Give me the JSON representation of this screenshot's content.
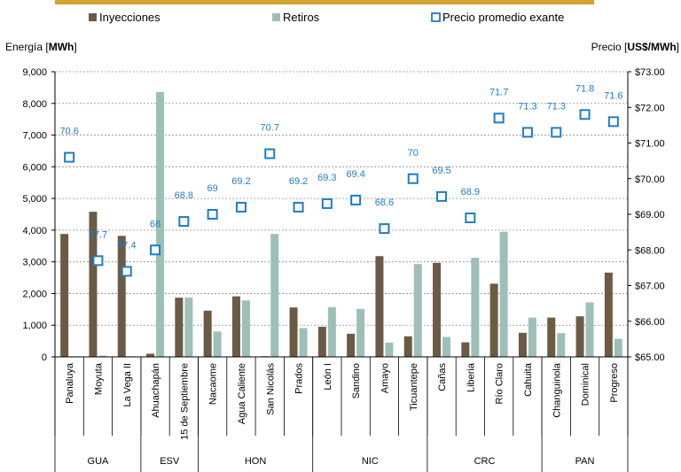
{
  "chart_data": {
    "type": "bar",
    "categories": [
      "Panaluya",
      "Moyuta",
      "La Vega II",
      "Ahuachapán",
      "15 de Septiembre",
      "Nacaome",
      "Agua Caliente",
      "San Nicolás",
      "Prados",
      "León I",
      "Sandino",
      "Amayo",
      "Ticuantepe",
      "Cañas",
      "Liberia",
      "Río Claro",
      "Cahuita",
      "Changuinola",
      "Dominical",
      "Progreso"
    ],
    "groups": [
      {
        "name": "GUA",
        "count": 3
      },
      {
        "name": "ESV",
        "count": 2
      },
      {
        "name": "HON",
        "count": 4
      },
      {
        "name": "NIC",
        "count": 4
      },
      {
        "name": "CRC",
        "count": 4
      },
      {
        "name": "PAN",
        "count": 3
      }
    ],
    "series": [
      {
        "name": "Inyecciones",
        "type": "bar",
        "axis": "left",
        "color": "#6B5B45",
        "values": [
          3880,
          4580,
          3820,
          100,
          1870,
          1460,
          1910,
          20,
          1560,
          950,
          730,
          3180,
          650,
          2970,
          460,
          2310,
          760,
          1240,
          1280,
          2660
        ]
      },
      {
        "name": "Retiros",
        "type": "bar",
        "axis": "left",
        "color": "#9DBFB8",
        "values": [
          20,
          40,
          20,
          8360,
          1870,
          800,
          1780,
          3880,
          910,
          1570,
          1510,
          450,
          2930,
          630,
          3130,
          3950,
          1240,
          750,
          1720,
          570
        ]
      },
      {
        "name": "Precio promedio exante",
        "type": "marker",
        "axis": "right",
        "color": "#1F7CC6",
        "values": [
          70.6,
          67.7,
          67.4,
          68.0,
          68.8,
          69.0,
          69.2,
          70.7,
          69.2,
          69.3,
          69.4,
          68.6,
          70.0,
          69.5,
          68.9,
          71.7,
          71.3,
          71.3,
          71.8,
          71.6
        ]
      }
    ],
    "y_left": {
      "label_prefix": "Energía [",
      "label_bold": "MWh",
      "label_suffix": "]",
      "min": 0,
      "max": 9000,
      "step": 1000,
      "ticks": [
        "0",
        "1,000",
        "2,000",
        "3,000",
        "4,000",
        "5,000",
        "6,000",
        "7,000",
        "8,000",
        "9,000"
      ]
    },
    "y_right": {
      "label_prefix": "Precio [",
      "label_bold": "US$/MWh",
      "label_suffix": "]",
      "min": 65,
      "max": 73,
      "step": 1,
      "ticks": [
        "$65.00",
        "$66.00",
        "$67.00",
        "$68.00",
        "$69.00",
        "$70.00",
        "$71.00",
        "$72.00",
        "$73.00"
      ]
    },
    "grid": true,
    "legend_position": "top"
  },
  "colors": {
    "banner": "#D4A22F",
    "label_blue": "#1F7CC6"
  }
}
